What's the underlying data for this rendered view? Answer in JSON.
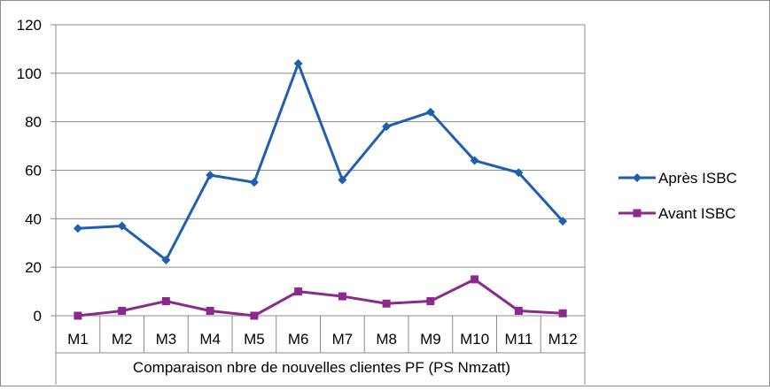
{
  "chart_data": {
    "type": "line",
    "categories": [
      "M1",
      "M2",
      "M3",
      "M4",
      "M5",
      "M6",
      "M7",
      "M8",
      "M9",
      "M10",
      "M11",
      "M12"
    ],
    "xlabel": "Comparaison nbre de nouvelles clientes PF (PS Nmzatt)",
    "ylabel": "",
    "ylim": [
      0,
      120
    ],
    "yticks": [
      0,
      20,
      40,
      60,
      80,
      100,
      120
    ],
    "grid": true,
    "legend_position": "right",
    "series": [
      {
        "name": "Après ISBC",
        "values": [
          36,
          37,
          23,
          58,
          55,
          104,
          56,
          78,
          84,
          64,
          59,
          39
        ],
        "color": "#1f5fb0",
        "marker": "diamond"
      },
      {
        "name": "Avant ISBC",
        "values": [
          0,
          2,
          6,
          2,
          0,
          10,
          8,
          5,
          6,
          15,
          2,
          1
        ],
        "color": "#8b2a8b",
        "marker": "square"
      }
    ]
  }
}
